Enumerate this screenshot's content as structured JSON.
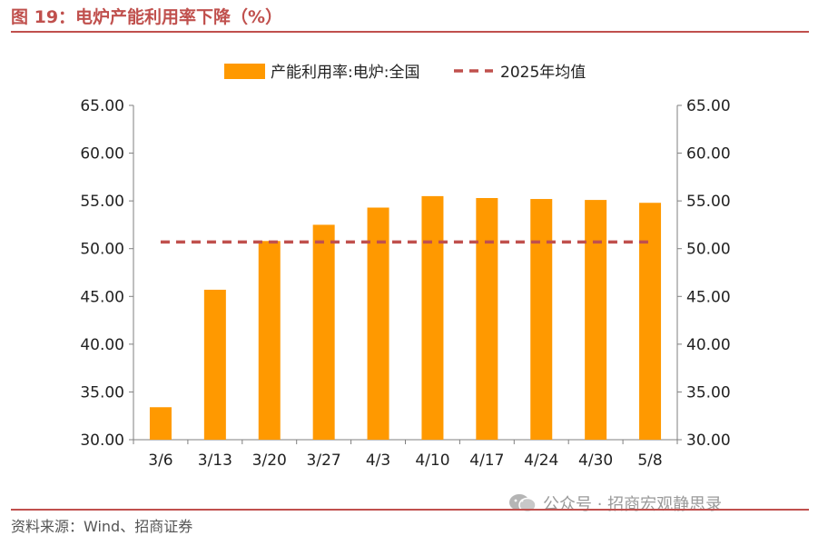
{
  "figure": {
    "title": "图 19：电炉产能利用率下降（%）",
    "source": "资料来源：Wind、招商证券",
    "watermark": "公众号 · 招商宏观静思录"
  },
  "colors": {
    "accent": "#c0504d",
    "bar": "#ff9900",
    "avg_line": "#c0504d",
    "axis": "#7f7f7f"
  },
  "chart_data": {
    "type": "bar",
    "categories": [
      "3/6",
      "3/13",
      "3/20",
      "3/27",
      "4/3",
      "4/10",
      "4/17",
      "4/24",
      "4/30",
      "5/8"
    ],
    "series": [
      {
        "name": "产能利用率:电炉:全国",
        "type": "bar",
        "values": [
          33.4,
          45.7,
          50.8,
          52.5,
          54.3,
          55.5,
          55.3,
          55.2,
          55.1,
          54.8
        ]
      },
      {
        "name": "2025年均值",
        "type": "line",
        "style": "dashed",
        "values": [
          50.7,
          50.7,
          50.7,
          50.7,
          50.7,
          50.7,
          50.7,
          50.7,
          50.7,
          50.7
        ]
      }
    ],
    "ylim": [
      30,
      65
    ],
    "yticks": [
      "30.00",
      "35.00",
      "40.00",
      "45.00",
      "50.00",
      "55.00",
      "60.00",
      "65.00"
    ],
    "y2lim": [
      30,
      65
    ],
    "y2ticks": [
      "30.00",
      "35.00",
      "40.00",
      "45.00",
      "50.00",
      "55.00",
      "60.00",
      "65.00"
    ],
    "grid": false,
    "legend": "top-center"
  }
}
